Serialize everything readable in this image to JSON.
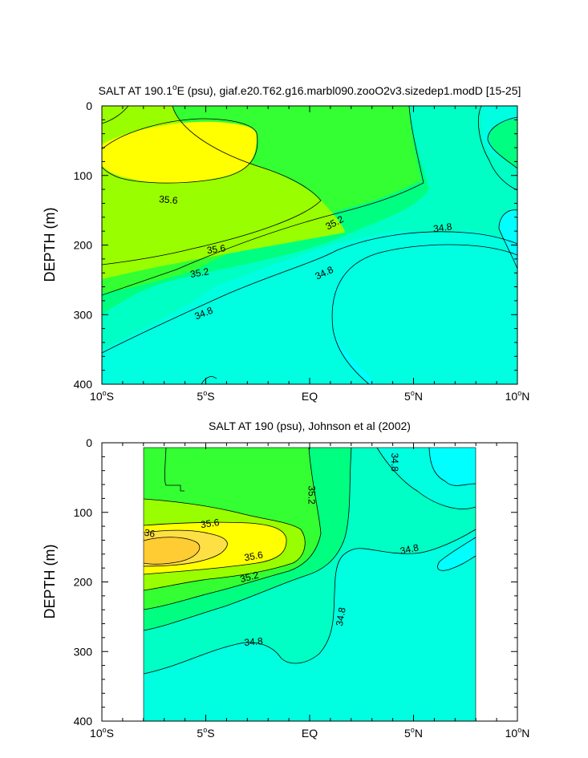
{
  "chart_data": [
    {
      "type": "contour",
      "title": "SALT AT 190.1°E (psu), giaf.e20.T62.g16.marbl090.zooO2v3.sizedep1.modD [15-25]",
      "title_main": "SALT AT 190.1",
      "title_sup": "o",
      "title_rest": "E (psu), giaf.e20.T62.g16.marbl090.zooO2v3.sizedep1.modD [15-25]",
      "ylabel": "DEPTH (m)",
      "xlim": [
        -10,
        10
      ],
      "ylim": [
        400,
        0
      ],
      "xticks": [
        {
          "x": -10,
          "num": "10",
          "sup": "o",
          "hemi": "S"
        },
        {
          "x": -5,
          "num": "5",
          "sup": "o",
          "hemi": "S"
        },
        {
          "x": 0,
          "num": "EQ",
          "sup": "",
          "hemi": ""
        },
        {
          "x": 5,
          "num": "5",
          "sup": "o",
          "hemi": "N"
        },
        {
          "x": 10,
          "num": "10",
          "sup": "o",
          "hemi": "N"
        }
      ],
      "yticks": [
        "0",
        "100",
        "200",
        "300",
        "400"
      ],
      "contour_levels": [
        34.6,
        34.8,
        35.0,
        35.2,
        35.4,
        35.6,
        35.8,
        36.0
      ],
      "fill_colors": {
        "below_34.6": "#00ffff",
        "34.6-34.8": "#00ffe0",
        "34.8-35.0": "#00ffc4",
        "35.0-35.2": "#00ff80",
        "35.2-35.4": "#33ff33",
        "35.4-35.6": "#99ff00",
        "35.6-35.8": "#ffff00",
        "above_36.0": "#ffcc33"
      },
      "labels": [
        {
          "text": "35.6",
          "x": -6.8,
          "y": 135
        },
        {
          "text": "35.2",
          "x": 1.2,
          "y": 168
        },
        {
          "text": "34.8",
          "x": 6.4,
          "y": 175
        },
        {
          "text": "35.6",
          "x": -4.5,
          "y": 206
        },
        {
          "text": "35.2",
          "x": -5.3,
          "y": 240
        },
        {
          "text": "34.8",
          "x": 0.7,
          "y": 240
        },
        {
          "text": "34.8",
          "x": -5.1,
          "y": 298
        }
      ]
    },
    {
      "type": "contour",
      "title": "SALT AT 190 (psu), Johnson et al (2002)",
      "ylabel": "DEPTH (m)",
      "xlim": [
        -10,
        10
      ],
      "ylim": [
        400,
        0
      ],
      "data_xrange": [
        -8,
        8
      ],
      "xticks": [
        {
          "x": -10,
          "num": "10",
          "sup": "o",
          "hemi": "S"
        },
        {
          "x": -5,
          "num": "5",
          "sup": "o",
          "hemi": "S"
        },
        {
          "x": 0,
          "num": "EQ",
          "sup": "",
          "hemi": ""
        },
        {
          "x": 5,
          "num": "5",
          "sup": "o",
          "hemi": "N"
        },
        {
          "x": 10,
          "num": "10",
          "sup": "o",
          "hemi": "N"
        }
      ],
      "yticks": [
        "0",
        "100",
        "200",
        "300",
        "400"
      ],
      "labels": [
        {
          "text": "34.8",
          "x": 4.1,
          "y": 28
        },
        {
          "text": "35.2",
          "x": 0.1,
          "y": 75
        },
        {
          "text": "35.6",
          "x": -4.8,
          "y": 116
        },
        {
          "text": "36",
          "x": -7.7,
          "y": 130
        },
        {
          "text": "34.8",
          "x": 4.8,
          "y": 153
        },
        {
          "text": "35.6",
          "x": -2.7,
          "y": 163
        },
        {
          "text": "35.2",
          "x": -2.9,
          "y": 193
        },
        {
          "text": "34.8",
          "x": 1.5,
          "y": 250
        },
        {
          "text": "34.8",
          "x": -2.7,
          "y": 286
        }
      ]
    }
  ]
}
